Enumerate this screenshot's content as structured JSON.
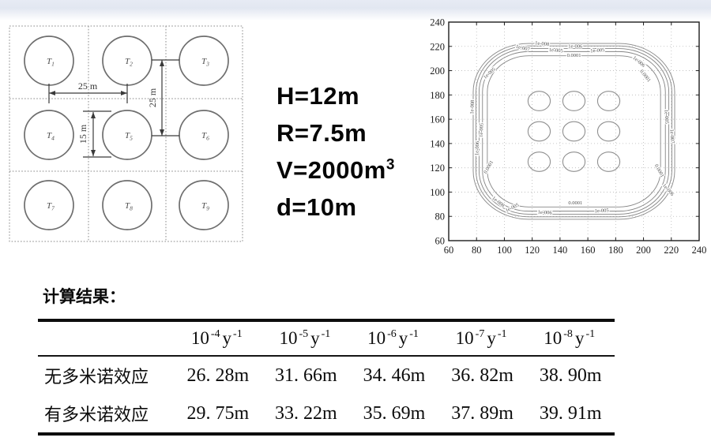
{
  "page": {
    "top_band_color": "#e7ebf4",
    "background": "#ffffff"
  },
  "tank_layout": {
    "tanks": [
      {
        "base": "T",
        "sub": "1"
      },
      {
        "base": "T",
        "sub": "2"
      },
      {
        "base": "T",
        "sub": "3"
      },
      {
        "base": "T",
        "sub": "4"
      },
      {
        "base": "T",
        "sub": "5"
      },
      {
        "base": "T",
        "sub": "6"
      },
      {
        "base": "T",
        "sub": "7"
      },
      {
        "base": "T",
        "sub": "8"
      },
      {
        "base": "T",
        "sub": "9"
      }
    ],
    "dim_spacing_horizontal": "25 m",
    "dim_tank_diameter": "15 m",
    "dim_spacing_vertical": "25 m",
    "line_color": "#6e6e6e",
    "dim_color": "#3a3a3a"
  },
  "parameters": {
    "lines": [
      {
        "text": "H=12m"
      },
      {
        "text": "R=7.5m"
      },
      {
        "text": "V=2000m",
        "sup": "3"
      },
      {
        "text": "d=10m"
      }
    ]
  },
  "chart_data": {
    "type": "contour",
    "title": "",
    "xlabel": "",
    "ylabel": "",
    "xlim": [
      60,
      240
    ],
    "ylim": [
      60,
      240
    ],
    "x_ticks": [
      60,
      80,
      100,
      120,
      140,
      160,
      180,
      200,
      220,
      240
    ],
    "y_ticks": [
      60,
      80,
      100,
      120,
      140,
      160,
      180,
      200,
      220,
      240
    ],
    "grid": "dotted",
    "tanks": {
      "centers_x": [
        125,
        150,
        175
      ],
      "centers_y": [
        125,
        150,
        175
      ],
      "radius": 8,
      "farm_bbox": [
        117.5,
        182.5
      ]
    },
    "contour_levels": [
      {
        "label": "0.0001",
        "distance_m": 29.75
      },
      {
        "label": "1e-005",
        "distance_m": 33.22
      },
      {
        "label": "1e-006",
        "distance_m": 35.69
      },
      {
        "label": "1e-007",
        "distance_m": 37.89
      },
      {
        "label": "1e-008",
        "distance_m": 39.91
      }
    ],
    "inline_labels": [
      {
        "text": "0.0001",
        "x": 150,
        "y": 211.5,
        "rot": 0
      },
      {
        "text": "1e-005",
        "x": 137,
        "y": 215.5,
        "rot": 4
      },
      {
        "text": "1e-005",
        "x": 167,
        "y": 215.5,
        "rot": -4
      },
      {
        "text": "1e-006",
        "x": 151,
        "y": 219,
        "rot": 0
      },
      {
        "text": "1e-007",
        "x": 113,
        "y": 217.5,
        "rot": 14
      },
      {
        "text": "1e-008",
        "x": 127,
        "y": 221,
        "rot": 6
      },
      {
        "text": "1e-006",
        "x": 196,
        "y": 206.5,
        "rot": 40
      },
      {
        "text": "0.0001",
        "x": 200.5,
        "y": 195,
        "rot": 52
      },
      {
        "text": "1e-005",
        "x": 90,
        "y": 197,
        "rot": -42
      },
      {
        "text": "1e-008",
        "x": 78,
        "y": 170,
        "rot": -87
      },
      {
        "text": "1e-005",
        "x": 84.5,
        "y": 151,
        "rot": -87
      },
      {
        "text": "1e-006",
        "x": 81.5,
        "y": 136,
        "rot": -87
      },
      {
        "text": "0.0001",
        "x": 89.5,
        "y": 120,
        "rot": -60
      },
      {
        "text": "1e-005",
        "x": 215.5,
        "y": 162,
        "rot": 87
      },
      {
        "text": "1e-007",
        "x": 219.5,
        "y": 146,
        "rot": 87
      },
      {
        "text": "0.0001",
        "x": 210.5,
        "y": 117,
        "rot": 60
      },
      {
        "text": "1e-006",
        "x": 217,
        "y": 101,
        "rot": 48
      },
      {
        "text": "0.0001",
        "x": 151,
        "y": 90,
        "rot": 0
      },
      {
        "text": "1e-005",
        "x": 170,
        "y": 83.5,
        "rot": -3
      },
      {
        "text": "1e-006",
        "x": 129,
        "y": 82,
        "rot": 3
      },
      {
        "text": "1e-005",
        "x": 106,
        "y": 86,
        "rot": -25
      },
      {
        "text": "1e-008",
        "x": 95,
        "y": 91,
        "rot": 38
      }
    ]
  },
  "results": {
    "title": "计算结果：",
    "table": {
      "col_headers": [
        {
          "base": "10",
          "exp": "-4",
          "unit": "y",
          "unit_exp": "-1"
        },
        {
          "base": "10",
          "exp": "-5",
          "unit": "y",
          "unit_exp": "-1"
        },
        {
          "base": "10",
          "exp": "-6",
          "unit": "y",
          "unit_exp": "-1"
        },
        {
          "base": "10",
          "exp": "-7",
          "unit": "y",
          "unit_exp": "-1"
        },
        {
          "base": "10",
          "exp": "-8",
          "unit": "y",
          "unit_exp": "-1"
        }
      ],
      "rows": [
        {
          "label": "无多米诺效应",
          "values": [
            "26. 28m",
            "31. 66m",
            "34. 46m",
            "36. 82m",
            "38. 90m"
          ]
        },
        {
          "label": "有多米诺效应",
          "values": [
            "29. 75m",
            "33. 22m",
            "35. 69m",
            "37. 89m",
            "39. 91m"
          ]
        }
      ]
    }
  }
}
